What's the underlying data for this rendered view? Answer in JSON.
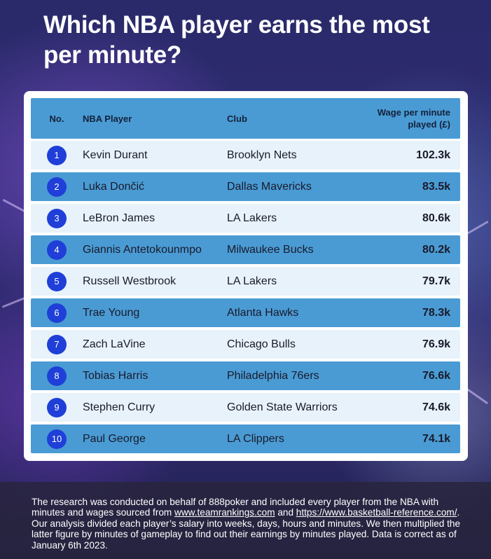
{
  "headline": "Which NBA player earns the most per minute?",
  "chart_data": {
    "type": "table",
    "columns": [
      "No.",
      "NBA Player",
      "Club",
      "Wage per minute played (£)"
    ],
    "rows": [
      {
        "rank": "1",
        "player": "Kevin Durant",
        "club": "Brooklyn Nets",
        "wage": "102.3k"
      },
      {
        "rank": "2",
        "player": "Luka Dončić",
        "club": "Dallas Mavericks",
        "wage": "83.5k"
      },
      {
        "rank": "3",
        "player": "LeBron James",
        "club": "LA Lakers",
        "wage": "80.6k"
      },
      {
        "rank": "4",
        "player": "Giannis Antetokounmpo",
        "club": "Milwaukee Bucks",
        "wage": "80.2k"
      },
      {
        "rank": "5",
        "player": "Russell Westbrook",
        "club": "LA Lakers",
        "wage": "79.7k"
      },
      {
        "rank": "6",
        "player": "Trae Young",
        "club": "Atlanta Hawks",
        "wage": "78.3k"
      },
      {
        "rank": "7",
        "player": "Zach LaVine",
        "club": "Chicago Bulls",
        "wage": "76.9k"
      },
      {
        "rank": "8",
        "player": "Tobias Harris",
        "club": "Philadelphia 76ers",
        "wage": "76.6k"
      },
      {
        "rank": "9",
        "player": "Stephen Curry",
        "club": "Golden State Warriors",
        "wage": "74.6k"
      },
      {
        "rank": "10",
        "player": "Paul George",
        "club": "LA Clippers",
        "wage": "74.1k"
      }
    ]
  },
  "footnote": {
    "part1": "The research was conducted on behalf of 888poker and included every player from the NBA with minutes and wages sourced from ",
    "link1": "www.teamrankings.com",
    "part2": " and ",
    "link2": "https://www.basketball-reference.com/",
    "part3": ". Our analysis divided each player’s salary into weeks, days, hours and minutes. We then multiplied the latter figure by minutes of gameplay to find out their earnings by minutes played. Data is correct as of January 6th 2023."
  },
  "colors": {
    "header_row": "#4a9bd4",
    "dark_row": "#4a9bd4",
    "light_row": "#e8f2fb",
    "rank_badge": "#1f3fd8"
  }
}
